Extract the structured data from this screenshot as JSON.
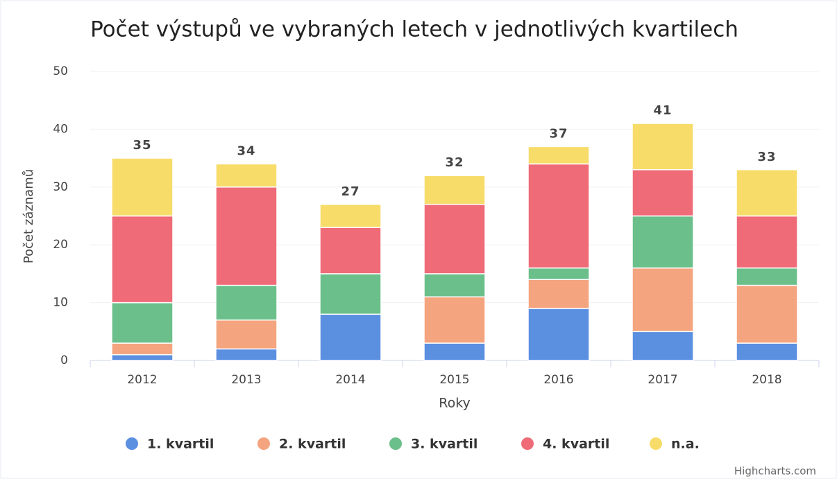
{
  "chart_data": {
    "type": "stacked_bar",
    "title": "Počet výstupů ve vybraných letech v jednotlivých kvartilech",
    "x_label": "Roky",
    "y_label": "Počet záznamů",
    "credit": "Highcharts.com",
    "categories": [
      "2012",
      "2013",
      "2014",
      "2015",
      "2016",
      "2017",
      "2018"
    ],
    "series": [
      {
        "name": "1. kvartil",
        "color": "#5b8fe0",
        "values": [
          1,
          2,
          8,
          3,
          9,
          5,
          3
        ]
      },
      {
        "name": "2. kvartil",
        "color": "#f4a47e",
        "values": [
          2,
          5,
          0,
          8,
          5,
          11,
          10
        ]
      },
      {
        "name": "3. kvartil",
        "color": "#6bbf8a",
        "values": [
          7,
          6,
          7,
          4,
          2,
          9,
          3
        ]
      },
      {
        "name": "4. kvartil",
        "color": "#ef6b77",
        "values": [
          15,
          17,
          8,
          12,
          18,
          8,
          9
        ]
      },
      {
        "name": "n.a.",
        "color": "#f7dc6a",
        "values": [
          10,
          4,
          4,
          5,
          3,
          8,
          8
        ]
      }
    ],
    "stack_totals": [
      35,
      34,
      27,
      32,
      37,
      41,
      33
    ],
    "ylim": [
      0,
      50
    ],
    "yticks": [
      0,
      10,
      20,
      30,
      40,
      50
    ],
    "grid": true,
    "legend": "bottom"
  }
}
